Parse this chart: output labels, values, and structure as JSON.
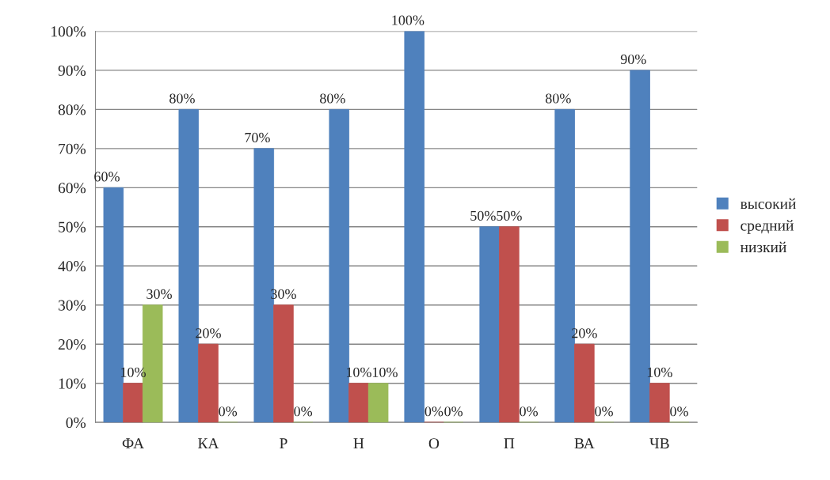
{
  "chart_data": {
    "type": "bar",
    "categories": [
      "ФА",
      "КА",
      "Р",
      "Н",
      "О",
      "П",
      "ВА",
      "ЧВ"
    ],
    "series": [
      {
        "name": "высокий",
        "color": "#4f81bd",
        "values": [
          60,
          80,
          70,
          80,
          100,
          50,
          80,
          90
        ],
        "value_labels": [
          "60%",
          "80%",
          "70%",
          "80%",
          "100%",
          "50%",
          "80%",
          "90%"
        ]
      },
      {
        "name": "средний",
        "color": "#c0504d",
        "values": [
          10,
          20,
          30,
          10,
          0,
          50,
          20,
          10
        ],
        "value_labels": [
          "10%",
          "20%",
          "30%",
          "10%",
          "0%",
          "50%",
          "20%",
          "10%"
        ]
      },
      {
        "name": "низкий",
        "color": "#9bbb59",
        "values": [
          30,
          0,
          0,
          10,
          0,
          0,
          0,
          0
        ],
        "value_labels": [
          "30%",
          "0%",
          "0%",
          "10%",
          "0%",
          "0%",
          "0%",
          "0%"
        ]
      }
    ],
    "ylim": [
      0,
      100
    ],
    "yticks": [
      {
        "value": 0,
        "label": "0%"
      },
      {
        "value": 10,
        "label": "10%"
      },
      {
        "value": 20,
        "label": "20%"
      },
      {
        "value": 30,
        "label": "30%"
      },
      {
        "value": 40,
        "label": "40%"
      },
      {
        "value": 50,
        "label": "50%"
      },
      {
        "value": 60,
        "label": "60%"
      },
      {
        "value": 70,
        "label": "70%"
      },
      {
        "value": 80,
        "label": "80%"
      },
      {
        "value": 90,
        "label": "90%"
      },
      {
        "value": 100,
        "label": "100%"
      }
    ],
    "grid": "y",
    "legend": "right"
  }
}
